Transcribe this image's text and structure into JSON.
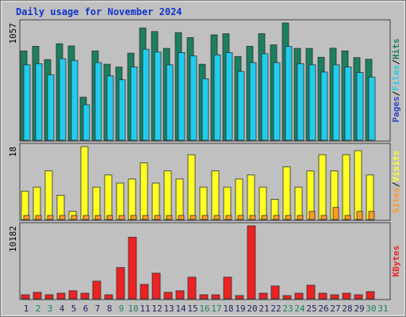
{
  "chart_data": [
    {
      "type": "bar",
      "title": "Daily usage for November 2024",
      "legend_separator": "/",
      "ylim": [
        0,
        1057
      ],
      "yticks": [
        1057
      ],
      "series": [
        {
          "name": "Pages",
          "color": "#3344cc",
          "values": [
            0,
            0,
            0,
            0,
            0,
            0,
            0,
            0,
            0,
            0,
            0,
            0,
            0,
            0,
            0,
            0,
            0,
            0,
            0,
            0,
            0,
            0,
            0,
            0,
            0,
            0,
            0,
            0,
            0,
            0,
            null
          ]
        },
        {
          "name": "Files",
          "color": "#22ccee",
          "values": [
            680,
            690,
            590,
            735,
            720,
            320,
            700,
            580,
            545,
            660,
            820,
            795,
            680,
            790,
            760,
            555,
            770,
            790,
            620,
            700,
            780,
            700,
            845,
            690,
            680,
            615,
            680,
            660,
            610,
            570,
            null
          ]
        },
        {
          "name": "Hits",
          "color": "#1a8060",
          "values": [
            805,
            847,
            727,
            870,
            850,
            388,
            805,
            685,
            660,
            785,
            1012,
            980,
            828,
            970,
            925,
            685,
            950,
            960,
            755,
            847,
            960,
            860,
            1057,
            828,
            828,
            748,
            830,
            805,
            745,
            730,
            null
          ]
        }
      ]
    },
    {
      "type": "bar",
      "legend_separator": "/",
      "ylim": [
        0,
        18
      ],
      "yticks": [
        18
      ],
      "series": [
        {
          "name": "Sites",
          "color": "#ff9922",
          "values": [
            1,
            1,
            1,
            1,
            1,
            1,
            1,
            1,
            1,
            1,
            1,
            1,
            1,
            1,
            1,
            1,
            1,
            1,
            1,
            1,
            1,
            1,
            1,
            1,
            2,
            1,
            3,
            1,
            2,
            2,
            null
          ]
        },
        {
          "name": "Visits",
          "color": "#ffff22",
          "values": [
            7,
            8,
            12,
            6,
            2,
            18,
            8,
            11,
            9,
            10,
            14,
            9,
            12,
            10,
            16,
            8,
            12,
            8,
            10,
            11,
            8,
            5,
            13,
            8,
            12,
            16,
            12,
            16,
            17,
            11,
            null
          ]
        }
      ]
    },
    {
      "type": "bar",
      "ylim": [
        0,
        10182
      ],
      "yticks": [
        10182
      ],
      "series": [
        {
          "name": "KBytes",
          "color": "#ee2222",
          "values": [
            560,
            900,
            560,
            780,
            1120,
            780,
            2460,
            560,
            4360,
            8600,
            2010,
            3580,
            900,
            1120,
            3020,
            560,
            560,
            3020,
            450,
            10182,
            780,
            1790,
            450,
            780,
            1900,
            780,
            560,
            780,
            560,
            1000,
            null
          ]
        }
      ],
      "categories": [
        "1",
        "2",
        "3",
        "4",
        "5",
        "6",
        "7",
        "8",
        "9",
        "10",
        "11",
        "12",
        "13",
        "14",
        "15",
        "16",
        "17",
        "18",
        "19",
        "20",
        "21",
        "22",
        "23",
        "24",
        "25",
        "26",
        "27",
        "28",
        "29",
        "30",
        "31"
      ],
      "category_colors": [
        "#222266",
        "#208060",
        "#208060",
        "#222266",
        "#222266",
        "#222266",
        "#222266",
        "#222266",
        "#208060",
        "#208060",
        "#222266",
        "#222266",
        "#222266",
        "#222266",
        "#222266",
        "#208060",
        "#208060",
        "#222266",
        "#222266",
        "#222266",
        "#222266",
        "#222266",
        "#208060",
        "#208060",
        "#222266",
        "#222266",
        "#222266",
        "#222266",
        "#222266",
        "#208060",
        "#208060"
      ]
    }
  ]
}
